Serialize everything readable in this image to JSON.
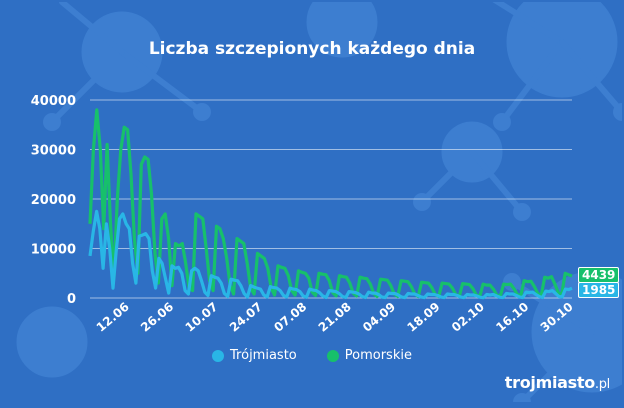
{
  "title": "Liczba szczepionych każdego dnia",
  "logo": {
    "name": "trojmiasto",
    "suffix": ".pl"
  },
  "colors": {
    "background": "#2f6fc4",
    "trojmiasto": "#29b6e6",
    "pomorskie": "#17c06b",
    "grid": "#ffffff"
  },
  "badges": {
    "pomorskie_last": "4439",
    "trojmiasto_last": "1985"
  },
  "chart_data": {
    "type": "line",
    "title": "Liczba szczepionych każdego dnia",
    "xlabel": "",
    "ylabel": "",
    "ylim": [
      0,
      40000
    ],
    "yticks": [
      "0",
      "10000",
      "20000",
      "30000",
      "40000"
    ],
    "xticks": [
      "12.06",
      "26.06",
      "10.07",
      "24.07",
      "07.08",
      "21.08",
      "04.09",
      "18.09",
      "02.10",
      "16.10",
      "30.10"
    ],
    "x_start": "2021-06-01",
    "x_end": "2021-10-31",
    "grid": true,
    "legend": "bottom",
    "series": [
      {
        "name": "Trójmiasto",
        "values": [
          8500,
          13500,
          17500,
          14000,
          6000,
          15000,
          10000,
          2000,
          9500,
          16000,
          17000,
          15000,
          14000,
          7000,
          3000,
          12500,
          12700,
          13000,
          12000,
          5500,
          2000,
          8000,
          7000,
          4000,
          1000,
          6500,
          6000,
          6200,
          5000,
          1500,
          800,
          5500,
          6000,
          5500,
          3500,
          1200,
          500,
          4500,
          4200,
          4000,
          3000,
          900,
          300,
          3800,
          3600,
          3500,
          2500,
          900,
          200,
          2500,
          2200,
          2000,
          1800,
          600,
          200,
          2300,
          2100,
          2000,
          1500,
          500,
          200,
          2000,
          1800,
          1700,
          1300,
          400,
          150,
          1800,
          1600,
          1500,
          1100,
          400,
          100,
          1500,
          1400,
          1300,
          900,
          300,
          100,
          1300,
          1200,
          1100,
          800,
          300,
          100,
          1200,
          1000,
          1000,
          700,
          200,
          80,
          1000,
          900,
          900,
          600,
          200,
          80,
          900,
          800,
          800,
          500,
          200,
          80,
          800,
          700,
          700,
          500,
          200,
          80,
          800,
          700,
          700,
          500,
          200,
          80,
          700,
          600,
          600,
          400,
          150,
          80,
          700,
          600,
          700,
          400,
          150,
          100,
          900,
          800,
          800,
          500,
          200,
          100,
          1200,
          1100,
          1200,
          700,
          300,
          100,
          1400,
          1300,
          1500,
          900,
          300,
          200,
          1800,
          1700,
          1985
        ],
        "last_label": "1985"
      },
      {
        "name": "Pomorskie",
        "values": [
          15000,
          30000,
          38000,
          30000,
          14000,
          31000,
          15000,
          4000,
          20000,
          30000,
          34500,
          34000,
          25000,
          12000,
          5000,
          27000,
          28500,
          28000,
          21000,
          9000,
          3000,
          16000,
          17000,
          12000,
          2500,
          11000,
          10500,
          11000,
          7000,
          2000,
          1500,
          17000,
          16500,
          16000,
          10000,
          3500,
          1500,
          14500,
          14000,
          12000,
          8000,
          2500,
          800,
          12000,
          11500,
          11000,
          7000,
          2000,
          800,
          9000,
          8500,
          8000,
          6000,
          2000,
          600,
          6500,
          6200,
          6000,
          4500,
          1500,
          600,
          5500,
          5200,
          5000,
          4000,
          1200,
          500,
          5000,
          4800,
          4700,
          3500,
          1100,
          400,
          4500,
          4300,
          4200,
          3000,
          1000,
          400,
          4200,
          4000,
          3900,
          2800,
          900,
          300,
          3800,
          3700,
          3600,
          2500,
          800,
          300,
          3500,
          3400,
          3300,
          2300,
          800,
          300,
          3200,
          3100,
          3000,
          2100,
          700,
          300,
          3000,
          2900,
          2800,
          2000,
          700,
          300,
          2900,
          2800,
          2700,
          1900,
          600,
          300,
          2800,
          2600,
          2600,
          1800,
          600,
          300,
          2800,
          2700,
          2800,
          1900,
          700,
          400,
          3500,
          3300,
          3400,
          2300,
          900,
          500,
          4200,
          4000,
          4300,
          2800,
          1100,
          700,
          5000,
          4700,
          4439
        ],
        "last_label": "4439"
      }
    ]
  }
}
